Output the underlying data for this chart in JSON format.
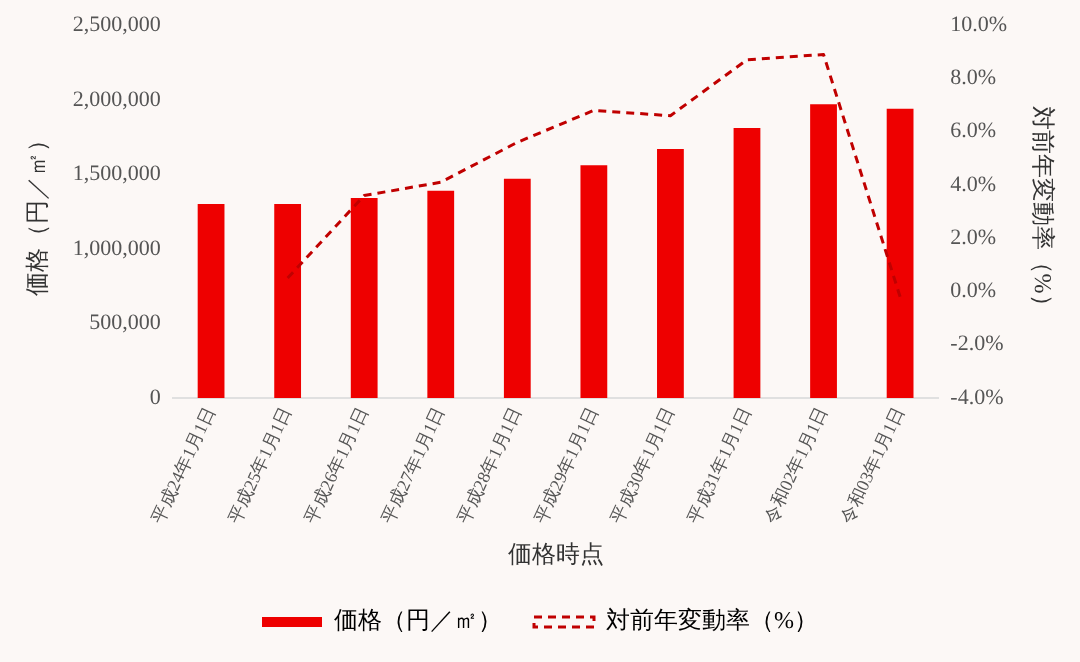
{
  "chart_data": {
    "type": "bar",
    "xlabel": "価格時点",
    "ylabel": "価格（円／㎡）",
    "y2label": "対前年変動率（%）",
    "categories": [
      "平成24年1月1日",
      "平成25年1月1日",
      "平成26年1月1日",
      "平成27年1月1日",
      "平成28年1月1日",
      "平成29年1月1日",
      "平成30年1月1日",
      "平成31年1月1日",
      "令和02年1月1日",
      "令和03年1月1日"
    ],
    "series": [
      {
        "name": "価格（円／㎡）",
        "color": "#ee0000",
        "values": [
          1300000,
          1300000,
          1340000,
          1390000,
          1470000,
          1560000,
          1670000,
          1810000,
          1970000,
          1940000
        ]
      },
      {
        "name": "対前年変動率（%）",
        "type": "line",
        "axis": "y2",
        "color": "#c00000",
        "line_style": "dashed",
        "marker": "none",
        "values": [
          null,
          0.5,
          3.6,
          4.1,
          5.6,
          6.8,
          6.6,
          8.7,
          8.9,
          -0.2
        ]
      }
    ],
    "ylim": [
      0,
      2500000
    ],
    "yticks": [
      0,
      {
        "value": 500000,
        "label": "500,000"
      },
      {
        "value": 1000000,
        "label": "1,000,000"
      },
      {
        "value": 1500000,
        "label": "1,500,000"
      },
      {
        "value": 2000000,
        "label": "2,000,000"
      },
      {
        "value": 2500000,
        "label": "2,500,000"
      }
    ],
    "y2lim": [
      -4,
      10
    ],
    "y2ticks": [
      {
        "value": -4,
        "label": "-4.0%"
      },
      {
        "value": -2,
        "label": "-2.0%"
      },
      {
        "value": 0,
        "label": "0.0%"
      },
      {
        "value": 2,
        "label": "2.0%"
      },
      {
        "value": 4,
        "label": "4.0%"
      },
      {
        "value": 6,
        "label": "6.0%"
      },
      {
        "value": 8,
        "label": "8.0%"
      },
      {
        "value": 10,
        "label": "10.0%"
      }
    ],
    "grid": false,
    "legend": "bottom"
  }
}
